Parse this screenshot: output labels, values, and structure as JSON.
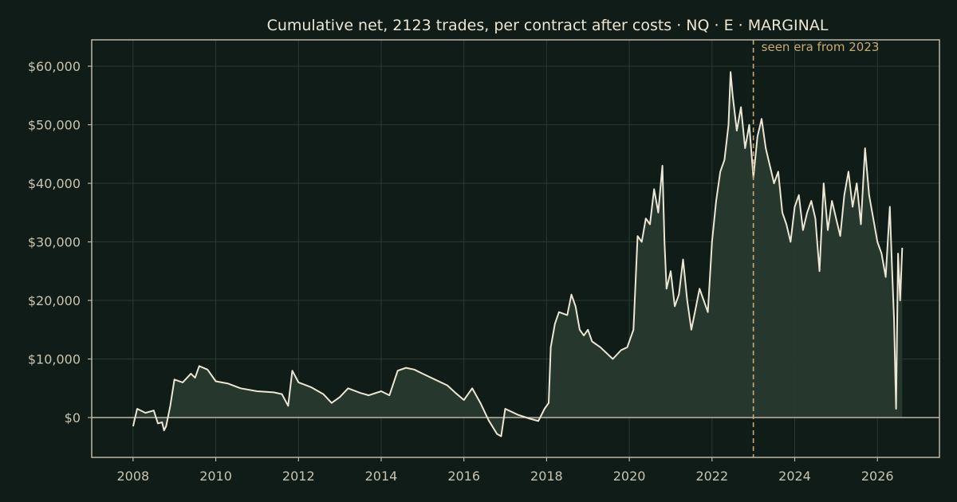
{
  "chart_data": {
    "type": "area",
    "title": "Cumulative net, 2123 trades, per contract after costs  ·  NQ · E · MARGINAL",
    "xlabel": "",
    "ylabel": "",
    "xlim": [
      2007.0,
      2027.5
    ],
    "ylim": [
      -6800,
      64500
    ],
    "x_ticks": [
      2008,
      2010,
      2012,
      2014,
      2016,
      2018,
      2020,
      2022,
      2024,
      2026
    ],
    "x_tick_labels": [
      "2008",
      "2010",
      "2012",
      "2014",
      "2016",
      "2018",
      "2020",
      "2022",
      "2024",
      "2026"
    ],
    "y_ticks": [
      0,
      10000,
      20000,
      30000,
      40000,
      50000,
      60000
    ],
    "y_tick_labels": [
      "$0",
      "$10,000",
      "$20,000",
      "$30,000",
      "$40,000",
      "$50,000",
      "$60,000"
    ],
    "grid": true,
    "legend": "none",
    "annotation": {
      "x": 2023.0,
      "label": "seen era from 2023"
    },
    "colors": {
      "background": "#0f1c17",
      "line": "#ece6d4",
      "fill": "#28392f",
      "grid": "#2a3a32",
      "axis": "#bdb7a5",
      "annotation": "#c8a971"
    },
    "series": [
      {
        "x": [
          2008.0,
          2008.1,
          2008.3,
          2008.5,
          2008.6,
          2008.7,
          2008.75,
          2008.8,
          2008.9,
          2009.0,
          2009.2,
          2009.4,
          2009.5,
          2009.6,
          2009.8,
          2010.0,
          2010.3,
          2010.6,
          2011.0,
          2011.4,
          2011.6,
          2011.75,
          2011.85,
          2012.0,
          2012.3,
          2012.6,
          2012.8,
          2013.0,
          2013.2,
          2013.5,
          2013.7,
          2014.0,
          2014.2,
          2014.4,
          2014.6,
          2014.8,
          2015.0,
          2015.3,
          2015.6,
          2015.8,
          2016.0,
          2016.2,
          2016.4,
          2016.6,
          2016.8,
          2016.9,
          2017.0,
          2017.3,
          2017.6,
          2017.8,
          2017.95,
          2018.05,
          2018.1,
          2018.2,
          2018.3,
          2018.5,
          2018.6,
          2018.7,
          2018.8,
          2018.9,
          2019.0,
          2019.1,
          2019.3,
          2019.6,
          2019.8,
          2019.95,
          2020.1,
          2020.2,
          2020.3,
          2020.4,
          2020.5,
          2020.6,
          2020.7,
          2020.8,
          2020.85,
          2020.9,
          2021.0,
          2021.1,
          2021.2,
          2021.3,
          2021.4,
          2021.5,
          2021.6,
          2021.7,
          2021.8,
          2021.9,
          2022.0,
          2022.1,
          2022.2,
          2022.3,
          2022.4,
          2022.45,
          2022.5,
          2022.6,
          2022.7,
          2022.8,
          2022.9,
          2023.0,
          2023.1,
          2023.2,
          2023.3,
          2023.4,
          2023.5,
          2023.6,
          2023.7,
          2023.8,
          2023.9,
          2024.0,
          2024.1,
          2024.2,
          2024.3,
          2024.4,
          2024.5,
          2024.6,
          2024.7,
          2024.8,
          2024.9,
          2025.0,
          2025.1,
          2025.2,
          2025.3,
          2025.4,
          2025.5,
          2025.6,
          2025.7,
          2025.8,
          2025.9,
          2026.0,
          2026.1,
          2026.2,
          2026.3,
          2026.35,
          2026.4,
          2026.45,
          2026.5,
          2026.55,
          2026.6
        ],
        "y": [
          -1500,
          1500,
          800,
          1200,
          -1000,
          -800,
          -2200,
          -1500,
          2000,
          6500,
          6000,
          7500,
          6800,
          8800,
          8200,
          6200,
          5800,
          5000,
          4500,
          4300,
          4000,
          2000,
          8000,
          6000,
          5200,
          4000,
          2500,
          3500,
          5000,
          4200,
          3800,
          4500,
          3800,
          8000,
          8500,
          8200,
          7500,
          6500,
          5500,
          4200,
          3000,
          5000,
          2500,
          -500,
          -2800,
          -3200,
          1500,
          500,
          -200,
          -600,
          1500,
          2500,
          12000,
          16000,
          18000,
          17500,
          21000,
          19000,
          15000,
          14000,
          15000,
          13000,
          12000,
          10000,
          11500,
          12000,
          15000,
          31000,
          30000,
          34000,
          33000,
          39000,
          35000,
          43000,
          30000,
          22000,
          25000,
          19000,
          21000,
          27000,
          20000,
          15000,
          18500,
          22000,
          20000,
          18000,
          30000,
          37000,
          42000,
          44000,
          50000,
          59000,
          55000,
          49000,
          53000,
          46000,
          50000,
          41000,
          48000,
          51000,
          46000,
          43000,
          40000,
          42000,
          35000,
          33000,
          30000,
          36000,
          38000,
          32000,
          35000,
          37000,
          34000,
          25000,
          40000,
          32000,
          37000,
          34000,
          31000,
          38000,
          42000,
          36000,
          40000,
          33000,
          46000,
          38000,
          34000,
          30000,
          28000,
          24000,
          36000,
          26000,
          17000,
          1500,
          28000,
          20000,
          29000
        ]
      }
    ]
  }
}
